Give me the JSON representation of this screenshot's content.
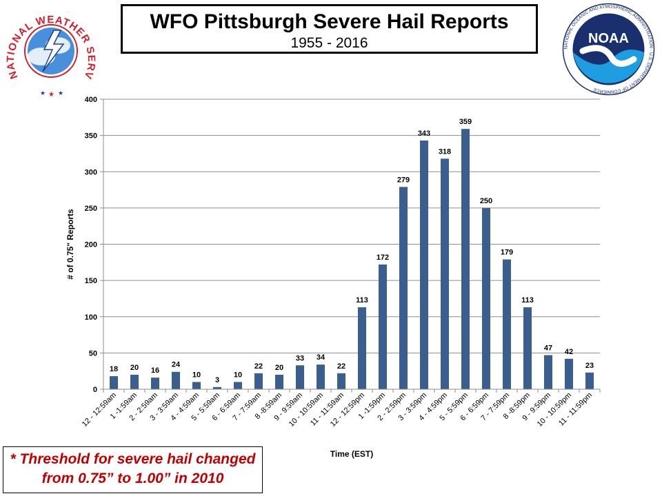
{
  "title": "WFO Pittsburgh Severe Hail Reports",
  "subtitle": "1955 - 2016",
  "note": {
    "line1": "* Threshold for severe hail changed",
    "line2": "from 0.75” to 1.00” in 2010"
  },
  "logos": {
    "nws": {
      "text": "NATIONAL WEATHER SERVICE",
      "icon": "nws-logo-icon"
    },
    "noaa": {
      "text": "NOAA",
      "ring_text": "NATIONAL OCEANIC AND ATMOSPHERIC ADMINISTRATION · U.S. DEPARTMENT OF COMMERCE",
      "icon": "noaa-logo-icon"
    }
  },
  "chart_data": {
    "type": "bar",
    "xlabel": "Time (EST)",
    "ylabel": "# of 0.75\" Reports",
    "ylim": [
      0,
      400
    ],
    "yticks": [
      0,
      50,
      100,
      150,
      200,
      250,
      300,
      350,
      400
    ],
    "grid": true,
    "bar_color": "#3a5f8f",
    "categories": [
      "12 - 12:59am",
      "1 -1:59am",
      "2 - 2:59am",
      "3 - 3:59am",
      "4 - 4:59am",
      "5 - 5:59am",
      "6 - 6:59am",
      "7 - 7:59am",
      "8 -8:59am",
      "9 - 9:59am",
      "10 - 10:59am",
      "11 - 11:59am",
      "12 - 12:59pm",
      "1 -1:59pm",
      "2 - 2:59pm",
      "3 - 3:59pm",
      "4 - 4:59pm",
      "5 - 5:59pm",
      "6 - 6:59pm",
      "7 - 7:59pm",
      "8 -8:59pm",
      "9 - 9:59pm",
      "10 - 10:59pm",
      "11 - 11:59pm"
    ],
    "values": [
      18,
      20,
      16,
      24,
      10,
      3,
      10,
      22,
      20,
      33,
      34,
      22,
      113,
      172,
      279,
      343,
      318,
      359,
      250,
      179,
      113,
      47,
      42,
      23
    ]
  }
}
